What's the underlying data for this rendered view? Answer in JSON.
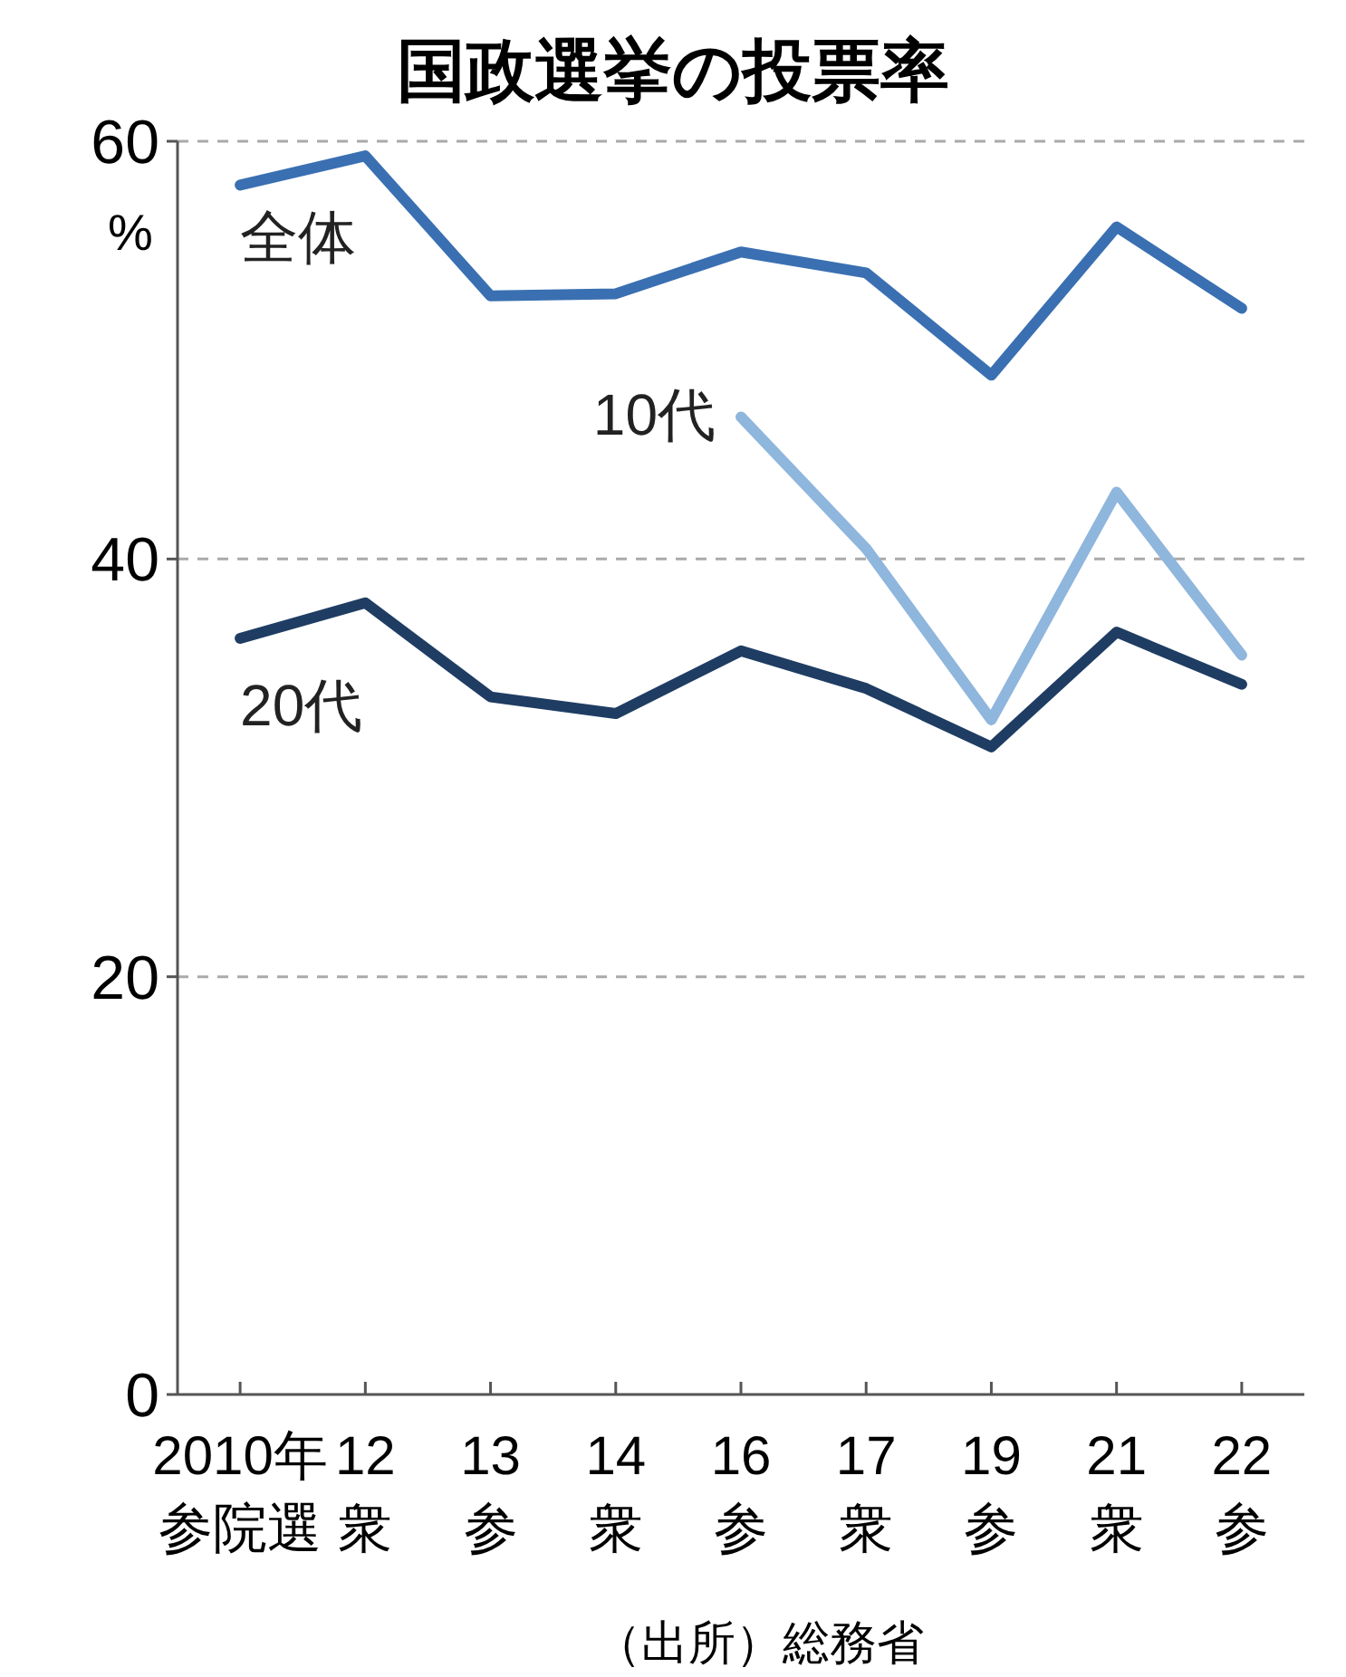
{
  "chart_data": {
    "type": "line",
    "title": "国政選挙の投票率",
    "ylabel": "%",
    "categories": [
      "2010年参院選",
      "12衆",
      "13参",
      "14衆",
      "16参",
      "17衆",
      "19参",
      "21衆",
      "22参"
    ],
    "series": [
      {
        "name": "全体",
        "color": "#3a70b2",
        "values": [
          57.9,
          59.3,
          52.6,
          52.7,
          54.7,
          53.7,
          48.8,
          55.9,
          52.0
        ]
      },
      {
        "name": "10代",
        "color": "#8fb6dc",
        "values": [
          null,
          null,
          null,
          null,
          46.8,
          40.5,
          32.3,
          43.2,
          35.4
        ]
      },
      {
        "name": "20代",
        "color": "#1f3d63",
        "values": [
          36.2,
          37.9,
          33.4,
          32.6,
          35.6,
          33.8,
          31.0,
          36.5,
          34.0
        ]
      }
    ],
    "ylim": [
      0,
      60
    ],
    "yticks": [
      0,
      20,
      40,
      60
    ],
    "grid": "y",
    "annotations": [
      "（出所）総務省"
    ]
  }
}
